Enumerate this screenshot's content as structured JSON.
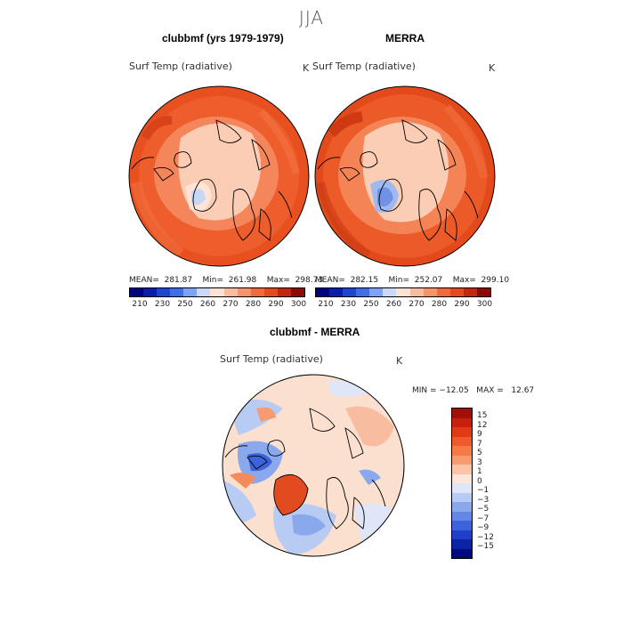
{
  "figure": {
    "title": "JJA"
  },
  "panels": [
    {
      "title": "clubbmf (yrs 1979-1979)",
      "variable": "Surf Temp (radiative)",
      "units": "K",
      "stats_text": "MEAN=  281.87    Min=  261.98    Max=  298.73",
      "mean": 281.87,
      "min": 261.98,
      "max": 298.73
    },
    {
      "title": "MERRA",
      "variable": "Surf Temp (radiative)",
      "units": "K",
      "stats_text": "MEAN=  282.15    Min=  252.07    Max=  299.10",
      "mean": 282.15,
      "min": 252.07,
      "max": 299.1
    },
    {
      "title": "clubbmf - MERRA",
      "variable": "Surf Temp (radiative)",
      "units": "K",
      "stats_text": "MIN = −12.05   MAX =   12.67",
      "min": -12.05,
      "max": 12.67
    }
  ],
  "colorbar_abs": {
    "ticks": [
      "210",
      "230",
      "250",
      "260",
      "270",
      "280",
      "290",
      "300"
    ],
    "colors": [
      "#00007f",
      "#0a1fa8",
      "#1f44d0",
      "#3f6ee8",
      "#7ea3f2",
      "#c9d9f6",
      "#fbe2d2",
      "#f8bda0",
      "#f5936c",
      "#f06a40",
      "#e24a1f",
      "#c0290f",
      "#8a0a05"
    ]
  },
  "colorbar_diff": {
    "ticks": [
      "15",
      "12",
      "9",
      "7",
      "5",
      "3",
      "1",
      "0",
      "−1",
      "−3",
      "−5",
      "−7",
      "−9",
      "−12",
      "−15"
    ],
    "colors": [
      "#a01008",
      "#c8200c",
      "#e23a16",
      "#f05a2a",
      "#f57a48",
      "#f89c70",
      "#fbc4a8",
      "#fde6d8",
      "#dfe6f8",
      "#b8cbf2",
      "#8aa8ec",
      "#6486e4",
      "#3c63dc",
      "#1f3fc8",
      "#0a24a8",
      "#000a80"
    ]
  },
  "colors": {
    "warm_field": "#ee5a2a",
    "warm_mid": "#f58a5c",
    "polar_pale": "#fbcdb4",
    "ice_blue": "#c6d6f4",
    "diff_pale": "#fde2d2",
    "diff_blue": "#7fa0ea",
    "diff_red": "#e24a1f"
  }
}
